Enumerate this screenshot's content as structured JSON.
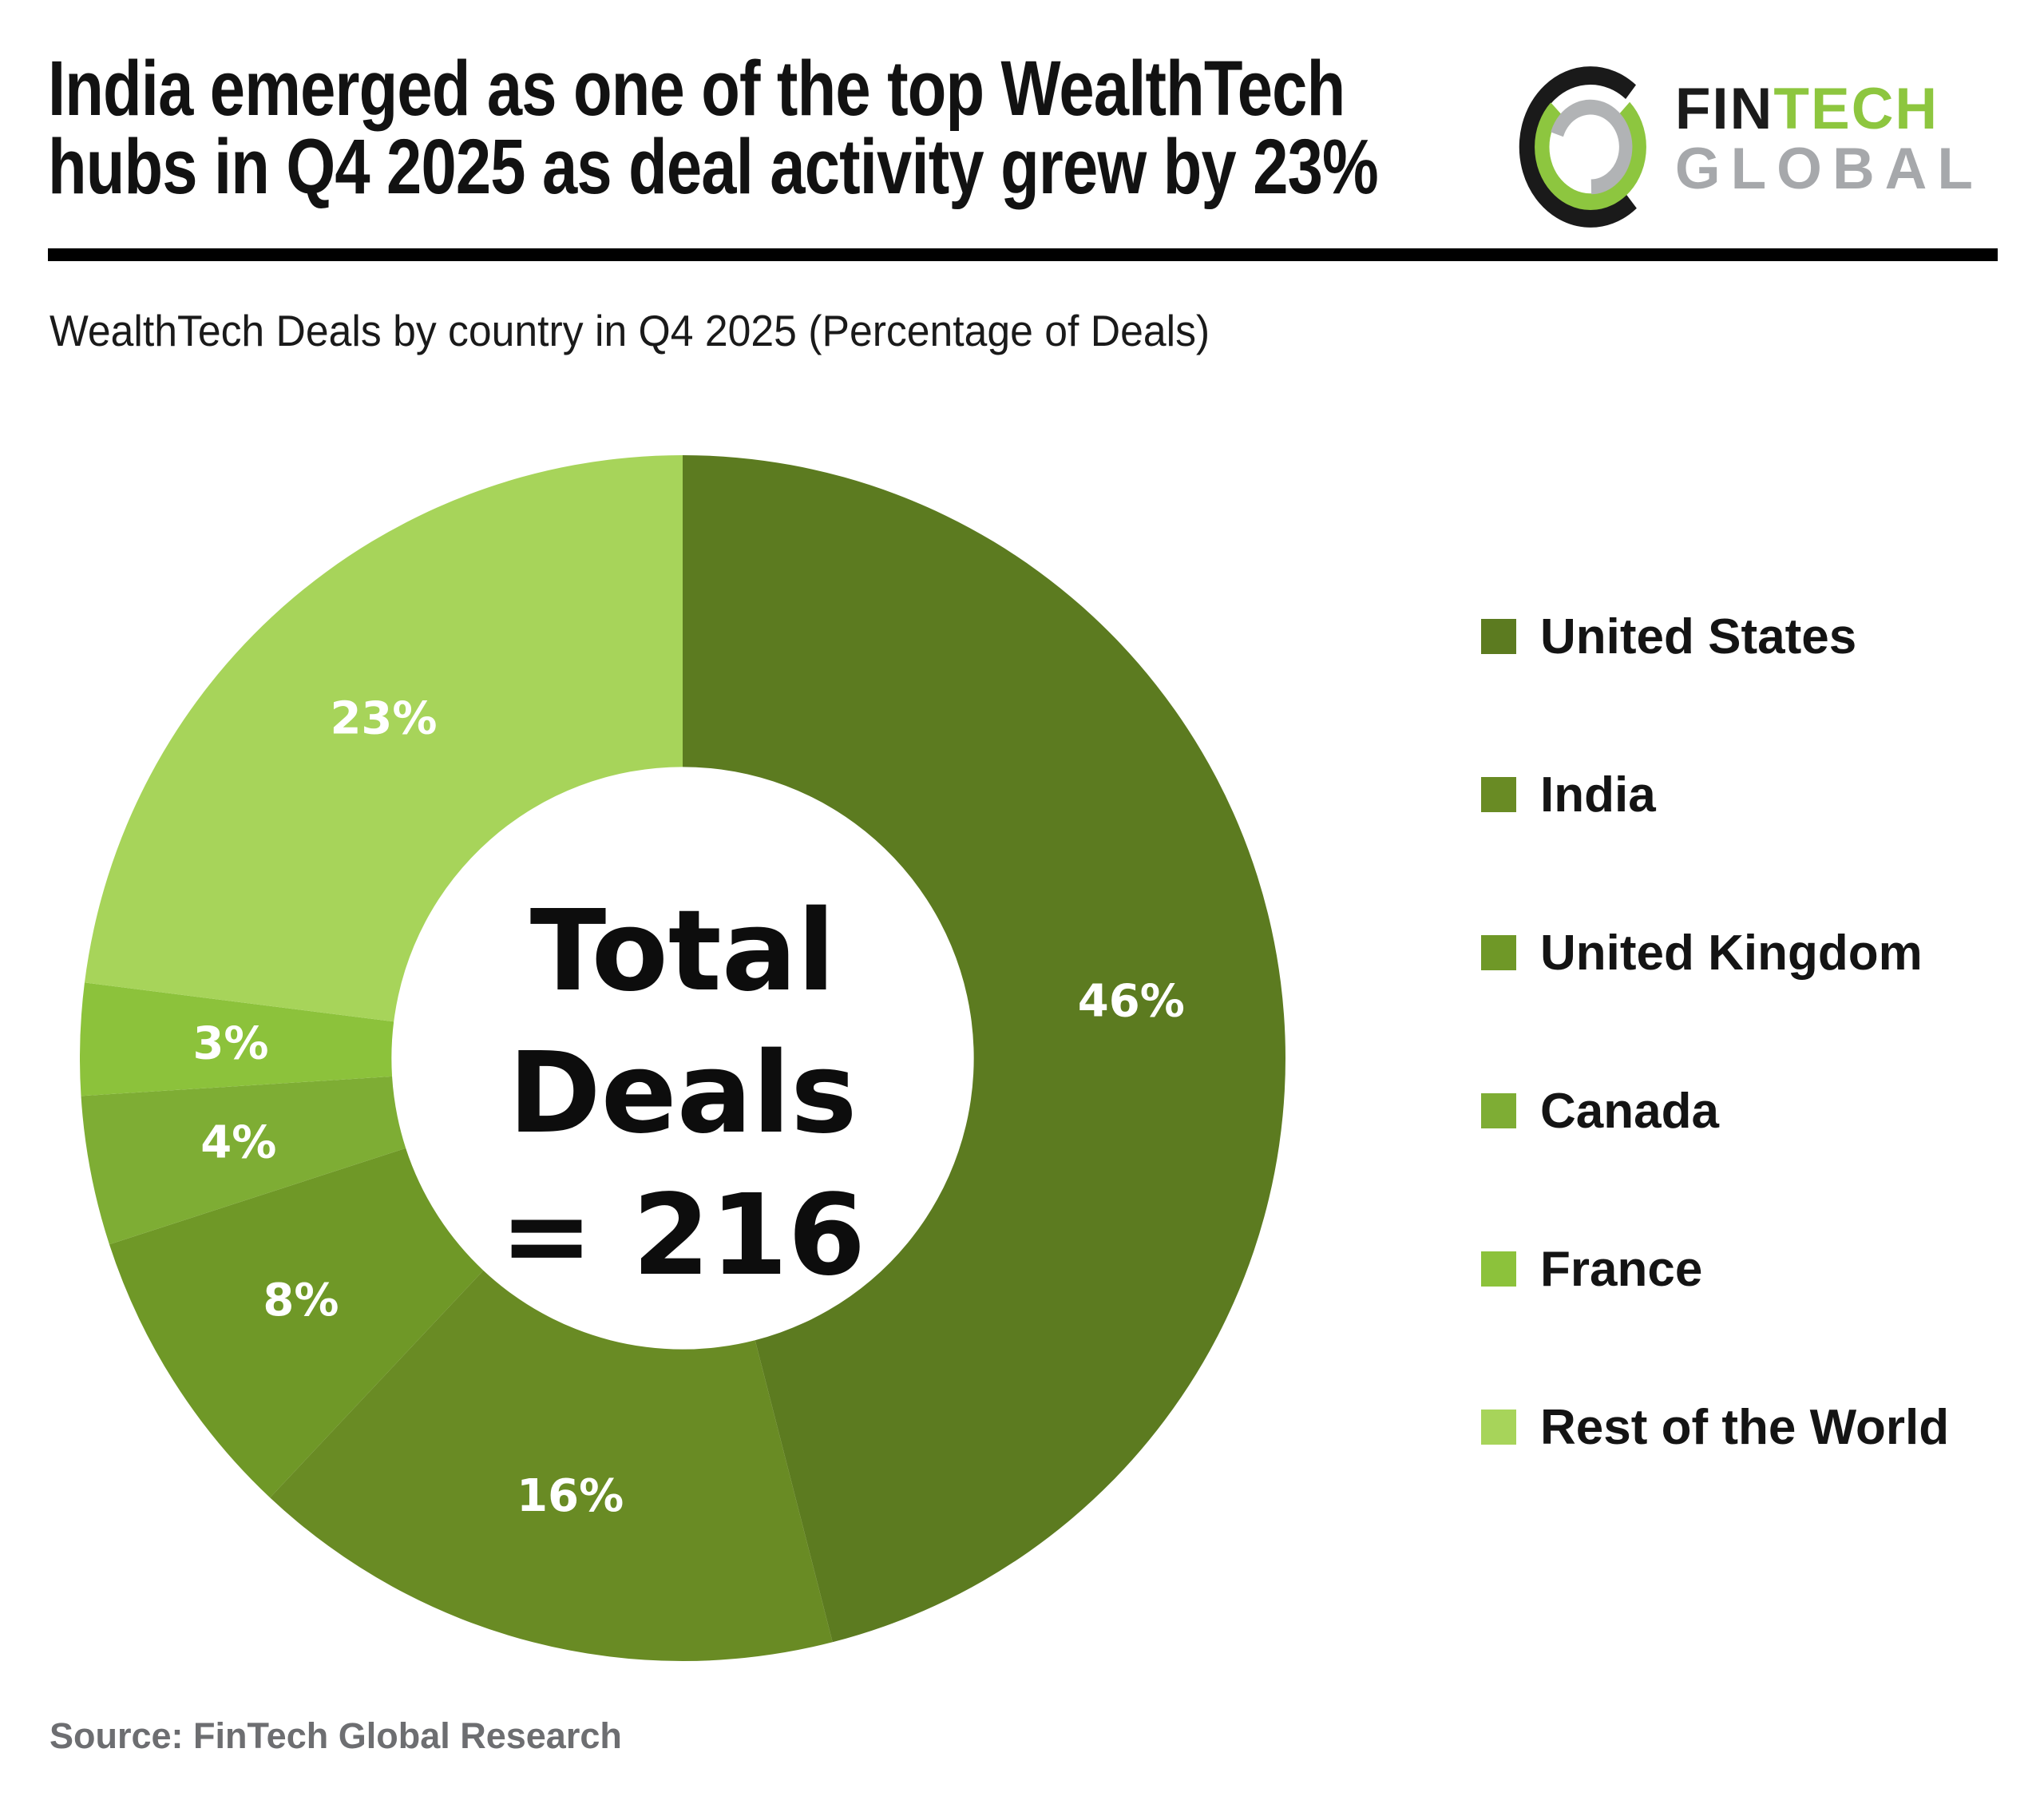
{
  "header": {
    "title_lines": [
      "India emerged as one of the top WealthTech",
      "hubs in Q4 2025 as deal activity grew by 23%"
    ]
  },
  "logo": {
    "fin": "FIN",
    "tech": "TECH",
    "global": "GLOBAL",
    "tech_color": "#8dc63f",
    "global_color": "#a6a8ab",
    "black_color": "#1b1b1b"
  },
  "subtitle": "WealthTech Deals by country in Q4 2025 (Percentage of Deals)",
  "source": "Source: FinTech Global Research",
  "chart_data": {
    "type": "pie",
    "subtype": "donut",
    "title": "WealthTech Deals by country in Q4 2025 (Percentage of Deals)",
    "center_lines": [
      "Total",
      "Deals",
      "= 216"
    ],
    "total_deals": 216,
    "unit": "percent",
    "start_angle_deg_from_top": 0,
    "clockwise": true,
    "donut_hole_ratio": 0.483,
    "label_radius_ratio": 0.75,
    "legend_position": "right",
    "slices": [
      {
        "label": "United States",
        "value": 46,
        "pct_label": "46%",
        "color": "#5c7b20"
      },
      {
        "label": "India",
        "value": 16,
        "pct_label": "16%",
        "color": "#698b24"
      },
      {
        "label": "United Kingdom",
        "value": 8,
        "pct_label": "8%",
        "color": "#6f9827"
      },
      {
        "label": "Canada",
        "value": 4,
        "pct_label": "4%",
        "color": "#7ead34"
      },
      {
        "label": "France",
        "value": 3,
        "pct_label": "3%",
        "color": "#8cc23b"
      },
      {
        "label": "Rest of the World",
        "value": 23,
        "pct_label": "23%",
        "color": "#a7d45a"
      }
    ]
  }
}
